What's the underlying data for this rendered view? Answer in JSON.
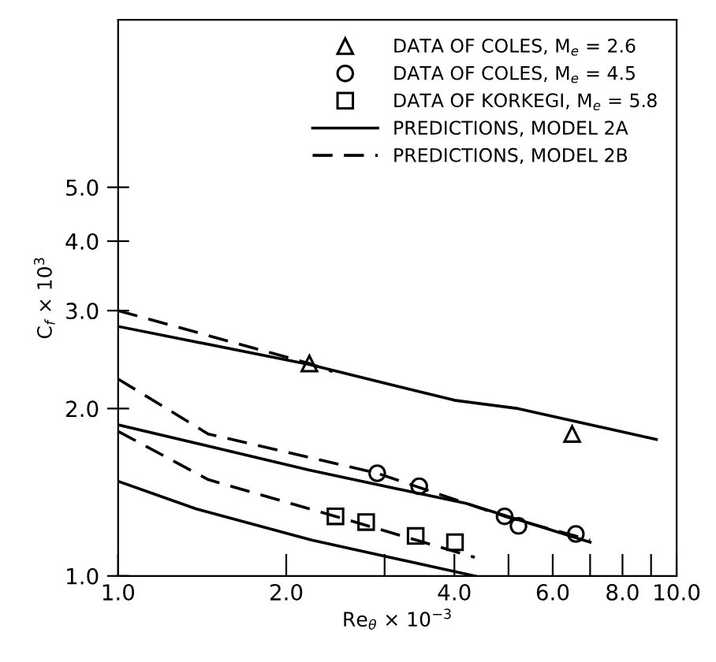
{
  "chart_data": {
    "type": "line",
    "xlabel": "Re$_{θ}$ × 10$^{−3}$",
    "ylabel": "C$_{f}$ × 10$^{3}$",
    "log": "xy",
    "xlim": [
      1,
      10
    ],
    "ylim": [
      1,
      10
    ],
    "xticks": [
      {
        "value": 1,
        "label": "1.0"
      },
      {
        "value": 2,
        "label": "2.0"
      },
      {
        "value": 3,
        "label": null
      },
      {
        "value": 4,
        "label": "4.0"
      },
      {
        "value": 5,
        "label": null
      },
      {
        "value": 6,
        "label": "6.0"
      },
      {
        "value": 7,
        "label": null
      },
      {
        "value": 8,
        "label": "8.0"
      },
      {
        "value": 9,
        "label": null
      },
      {
        "value": 10,
        "label": "10.0"
      }
    ],
    "yticks": [
      {
        "value": 1,
        "label": "1.0"
      },
      {
        "value": 2,
        "label": "2.0"
      },
      {
        "value": 3,
        "label": "3.0"
      },
      {
        "value": 4,
        "label": "4.0"
      },
      {
        "value": 5,
        "label": "5.0"
      }
    ],
    "grid": false,
    "legend": "top right",
    "series": [
      {
        "name": "DATA OF COLES, M$_{e}$ = 2.6",
        "type": "scatter",
        "marker": "triangle",
        "color": "#000000",
        "x": [
          2.2,
          6.5
        ],
        "values": [
          2.41,
          1.8
        ]
      },
      {
        "name": "DATA OF COLES, M$_{e}$ = 4.5",
        "type": "scatter",
        "marker": "circle",
        "color": "#000000",
        "x": [
          2.91,
          3.46,
          4.92,
          5.21,
          6.6
        ],
        "values": [
          1.53,
          1.45,
          1.28,
          1.23,
          1.19
        ]
      },
      {
        "name": "DATA OF KORKEGI, M$_{e}$ = 5.8",
        "type": "scatter",
        "marker": "square",
        "color": "#000000",
        "x": [
          2.45,
          2.78,
          3.41,
          4.01
        ],
        "values": [
          1.28,
          1.25,
          1.18,
          1.15
        ]
      },
      {
        "name": "PREDICTIONS, MODEL 2A",
        "line_style": "solid",
        "color": "#000000",
        "x": [
          1,
          2.2,
          4.0,
          5.2,
          9.2
        ],
        "values": [
          2.81,
          2.4,
          2.07,
          2.0,
          1.76
        ]
      },
      {
        "name": "PREDICTIONS, MODEL 2B",
        "line_style": "dashed",
        "color": "#000000",
        "x": [
          1,
          2.2,
          2.42
        ],
        "values": [
          3.0,
          2.41,
          2.33
        ]
      },
      {
        "line_style": "dashed",
        "color": "#000000",
        "x": [
          1,
          1.45,
          2.91,
          4.92,
          7.0
        ],
        "values": [
          2.26,
          1.8,
          1.53,
          1.28,
          1.16
        ]
      },
      {
        "line_style": "solid",
        "color": "#000000",
        "x": [
          1,
          2.2,
          4.2,
          7.0
        ],
        "values": [
          1.87,
          1.55,
          1.35,
          1.15
        ]
      },
      {
        "line_style": "dashed",
        "color": "#000000",
        "x": [
          1,
          1.45,
          2.45,
          4.35
        ],
        "values": [
          1.82,
          1.49,
          1.28,
          1.08
        ]
      },
      {
        "line_style": "solid",
        "color": "#000000",
        "x": [
          1,
          1.38,
          2.22,
          4.35
        ],
        "values": [
          1.48,
          1.32,
          1.16,
          1.0
        ]
      }
    ]
  }
}
